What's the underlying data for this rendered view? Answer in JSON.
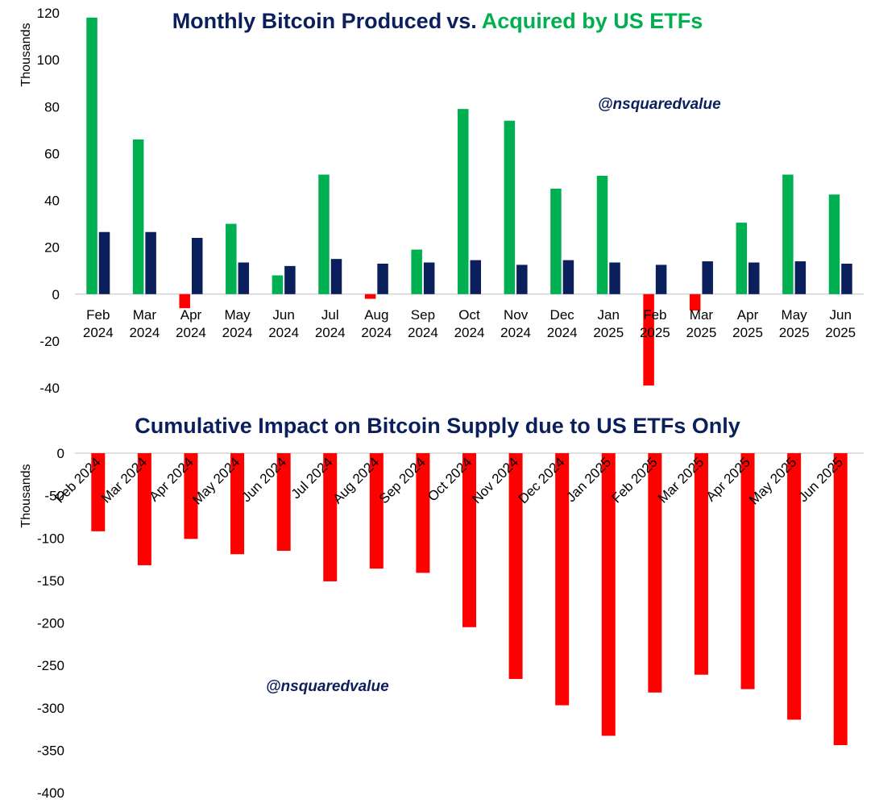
{
  "colors": {
    "navy": "#0b1f5c",
    "green": "#00b050",
    "red": "#ff0000"
  },
  "chart_data": [
    {
      "type": "bar",
      "title_parts": [
        "Monthly Bitcoin Produced",
        "vs.",
        "Acquired by US ETFs"
      ],
      "ylabel": "Thousands",
      "watermark": "@nsquaredvalue",
      "ylim": [
        -40,
        120
      ],
      "yticks": [
        120,
        100,
        80,
        60,
        40,
        20,
        0,
        -20,
        -40
      ],
      "categories": [
        [
          "Feb",
          "2024"
        ],
        [
          "Mar",
          "2024"
        ],
        [
          "Apr",
          "2024"
        ],
        [
          "May",
          "2024"
        ],
        [
          "Jun",
          "2024"
        ],
        [
          "Jul",
          "2024"
        ],
        [
          "Aug",
          "2024"
        ],
        [
          "Sep",
          "2024"
        ],
        [
          "Oct",
          "2024"
        ],
        [
          "Nov",
          "2024"
        ],
        [
          "Dec",
          "2024"
        ],
        [
          "Jan",
          "2025"
        ],
        [
          "Feb",
          "2025"
        ],
        [
          "Mar",
          "2025"
        ],
        [
          "Apr",
          "2025"
        ],
        [
          "May",
          "2025"
        ],
        [
          "Jun",
          "2025"
        ]
      ],
      "series": [
        {
          "name": "Acquired by US ETFs",
          "values": [
            118,
            66,
            -6,
            30,
            8,
            51,
            -2,
            19,
            79,
            74,
            45,
            50.5,
            -39,
            -7,
            30.5,
            51,
            42.5
          ]
        },
        {
          "name": "Bitcoin Produced",
          "values": [
            26.5,
            26.5,
            24,
            13.5,
            12,
            15,
            13,
            13.5,
            14.5,
            12.5,
            14.5,
            13.5,
            12.5,
            14,
            13.5,
            14,
            13
          ]
        }
      ]
    },
    {
      "type": "bar",
      "title": "Cumulative Impact on Bitcoin Supply due to US ETFs Only",
      "ylabel": "Thousands",
      "watermark": "@nsquaredvalue",
      "ylim": [
        -400,
        0
      ],
      "yticks": [
        0,
        -50,
        -100,
        -150,
        -200,
        -250,
        -300,
        -350,
        -400
      ],
      "categories": [
        "Feb 2024",
        "Mar 2024",
        "Apr 2024",
        "May 2024",
        "Jun 2024",
        "Jul 2024",
        "Aug 2024",
        "Sep 2024",
        "Oct 2024",
        "Nov 2024",
        "Dec 2024",
        "Jan 2025",
        "Feb 2025",
        "Mar 2025",
        "Apr 2025",
        "May 2025",
        "Jun 2025"
      ],
      "series": [
        {
          "name": "Cumulative impact",
          "values": [
            -92,
            -132,
            -101,
            -119,
            -115,
            -151,
            -136,
            -141,
            -205,
            -266,
            -297,
            -333,
            -282,
            -261,
            -278,
            -314,
            -344
          ]
        }
      ]
    }
  ]
}
